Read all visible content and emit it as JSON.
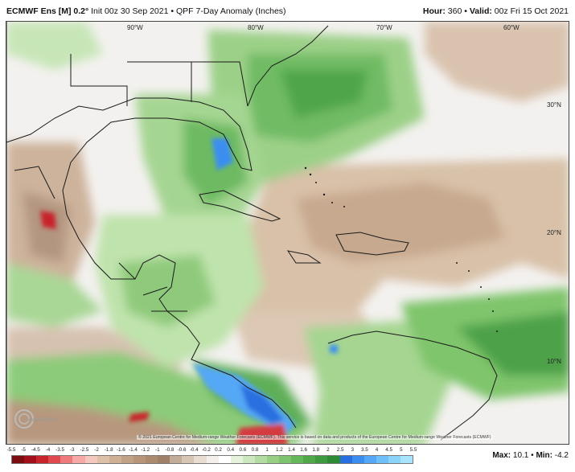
{
  "header": {
    "model": "ECMWF Ens [M] 0.2°",
    "init": "Init 00z 30 Sep 2021",
    "separator": "•",
    "product": "QPF 7-Day Anomaly (Inches)",
    "hour_label": "Hour:",
    "hour_value": "360",
    "valid_label": "Valid:",
    "valid_value": "00z Fri 15 Oct 2021"
  },
  "map": {
    "lon_labels": [
      "90°W",
      "80°W",
      "70°W",
      "60°W"
    ],
    "lat_labels": [
      "30°N",
      "20°N",
      "10°N"
    ],
    "attribution": "© 2021 European Centre for Medium-range Weather Forecasts (ECMWF). This service is based on data and products of the European Centre for Medium-range Weather Forecasts (ECMWF)",
    "logo_text": "WeatherBELL"
  },
  "colorbar": {
    "ticks": [
      "-5.5",
      "-5",
      "-4.5",
      "-4",
      "-3.5",
      "-3",
      "-2.5",
      "-2",
      "-1.8",
      "-1.6",
      "-1.4",
      "-1.2",
      "-1",
      "-0.8",
      "-0.6",
      "-0.4",
      "-0.2",
      "0.2",
      "0.4",
      "0.6",
      "0.8",
      "1",
      "1.2",
      "1.4",
      "1.6",
      "1.8",
      "2",
      "2.5",
      "3",
      "3.5",
      "4",
      "4.5",
      "5",
      "5.5"
    ],
    "colors": [
      "#7a0c12",
      "#a3101a",
      "#c7242b",
      "#e04a4f",
      "#ef7a7c",
      "#f6a9a6",
      "#f4c7bf",
      "#dcc0a8",
      "#cfb095",
      "#c2a285",
      "#b89578",
      "#ab8a6e",
      "#a08066",
      "#c4ad98",
      "#d8c6b4",
      "#e8ddd1",
      "#f4efea",
      "#ffffff",
      "#e6f3dc",
      "#cde8bf",
      "#b2dca1",
      "#97cf85",
      "#7ec36e",
      "#66b65a",
      "#50a84a",
      "#3d9a3e",
      "#2e8b35",
      "#2a6fe0",
      "#3a8ef0",
      "#55a8f5",
      "#6fc0f8",
      "#8ad4fa",
      "#a8e4fb"
    ],
    "max_label": "Max:",
    "max_value": "10.1",
    "min_label": "Min:",
    "min_value": "-4.2"
  }
}
